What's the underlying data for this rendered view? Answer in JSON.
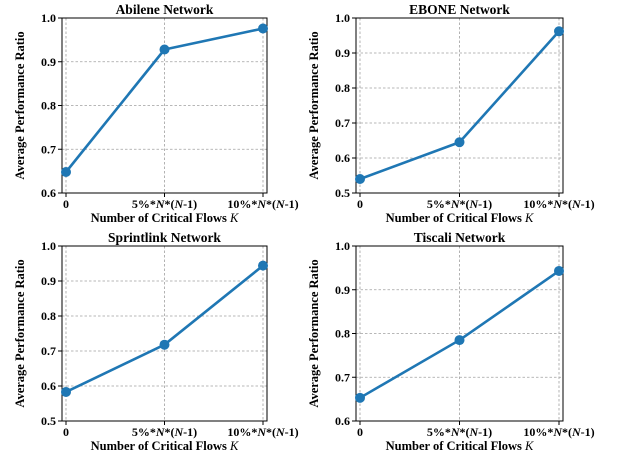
{
  "chart_data": [
    {
      "type": "line",
      "title": "Abilene Network",
      "xlabel": "Number of Critical Flows K",
      "ylabel": "Average Performance Ratio",
      "categories": [
        "0",
        "5%*N*(N-1)",
        "10%*N*(N-1)"
      ],
      "series": [
        {
          "values": [
            0.648,
            0.928,
            0.976
          ]
        }
      ],
      "ylim": [
        0.6,
        1.0
      ],
      "yticks": [
        "0.6",
        "0.7",
        "0.8",
        "0.9",
        "1.0"
      ],
      "grid": true,
      "color": "#1f77b4"
    },
    {
      "type": "line",
      "title": "EBONE Network",
      "xlabel": "Number of Critical Flows K",
      "ylabel": "Average Performance Ratio",
      "categories": [
        "0",
        "5%*N*(N-1)",
        "10%*N*(N-1)"
      ],
      "series": [
        {
          "values": [
            0.54,
            0.645,
            0.962
          ]
        }
      ],
      "ylim": [
        0.5,
        1.0
      ],
      "yticks": [
        "0.5",
        "0.6",
        "0.7",
        "0.8",
        "0.9",
        "1.0"
      ],
      "grid": true,
      "color": "#1f77b4"
    },
    {
      "type": "line",
      "title": "Sprintlink Network",
      "xlabel": "Number of Critical Flows K",
      "ylabel": "Average Performance Ratio",
      "categories": [
        "0",
        "5%*N*(N-1)",
        "10%*N*(N-1)"
      ],
      "series": [
        {
          "values": [
            0.583,
            0.718,
            0.944
          ]
        }
      ],
      "ylim": [
        0.5,
        1.0
      ],
      "yticks": [
        "0.5",
        "0.6",
        "0.7",
        "0.8",
        "0.9",
        "1.0"
      ],
      "grid": true,
      "color": "#1f77b4"
    },
    {
      "type": "line",
      "title": "Tiscali Network",
      "xlabel": "Number of Critical Flows K",
      "ylabel": "Average Performance Ratio",
      "categories": [
        "0",
        "5%*N*(N-1)",
        "10%*N*(N-1)"
      ],
      "series": [
        {
          "values": [
            0.653,
            0.785,
            0.943
          ]
        }
      ],
      "ylim": [
        0.6,
        1.0
      ],
      "yticks": [
        "0.6",
        "0.7",
        "0.8",
        "0.9",
        "1.0"
      ],
      "grid": true,
      "color": "#1f77b4"
    }
  ]
}
